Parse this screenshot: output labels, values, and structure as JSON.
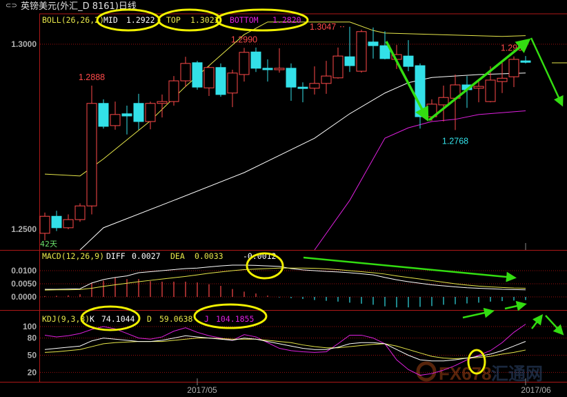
{
  "window": {
    "title": "英镑美元(外汇_D 8161)日线",
    "icon": "window-restore-icon"
  },
  "colors": {
    "up": "#ff4a4a",
    "down": "#33e0e8",
    "boll_mid": "#ffffff",
    "boll_top": "#e8e84a",
    "boll_bottom": "#e020e0",
    "diff": "#ffffff",
    "dea": "#e8e84a",
    "k": "#ffffff",
    "d": "#e8e84a",
    "j": "#e020e0",
    "annotation_ellipse": "#f0f000",
    "annotation_arrow": "#33dd11",
    "frame": "#b01818"
  },
  "boll": {
    "label": "BOLL(26,26,2)",
    "mid_label": "MID",
    "mid": "1.2922",
    "top_label": "TOP",
    "top": "1.3023",
    "bottom_label": "BOTTOM",
    "bottom": "1.2820"
  },
  "macd": {
    "label": "MACD(12,26,9)",
    "diff_label": "DIFF",
    "diff": "0.0027",
    "dea_label": "DEA",
    "dea": "0.0033",
    "macd": "-0.0012"
  },
  "kdj": {
    "label": "KDJ(9,3,3)",
    "k_label": "K",
    "k": "74.1044",
    "d_label": "D",
    "d": "59.0638",
    "j_label": "J",
    "j": "104.1855"
  },
  "days_label": "42天",
  "watermark": "FX678 汇通网",
  "chart_data": [
    {
      "type": "candlestick",
      "title": "",
      "y_ticks": [
        "1.3000",
        "1.2500"
      ],
      "ylim": [
        1.2444,
        1.3078
      ],
      "x_ticks": [
        {
          "label": "2017/05",
          "index": 14
        },
        {
          "label": "2017/06",
          "index": 42
        }
      ],
      "grid": "horizontal dotted at 1.3000",
      "annotations": [
        {
          "text": "1.2888",
          "index": 5,
          "price": 1.2888,
          "color": "#ff4a4a"
        },
        {
          "text": "1.2990",
          "index": 18,
          "price": 1.299,
          "color": "#ff4a4a"
        },
        {
          "text": "1.3047",
          "index": 27,
          "price": 1.3047,
          "color": "#ff4a4a",
          "arrow": "left"
        },
        {
          "text": "1.2768",
          "index": 36,
          "price": 1.2768,
          "color": "#33e0e8"
        },
        {
          "text": "1.2967",
          "index": 41,
          "price": 1.2967,
          "color": "#ff4a4a"
        }
      ],
      "ohlc": [
        [
          1.2489,
          1.2545,
          1.247,
          1.2535
        ],
        [
          1.2535,
          1.255,
          1.2495,
          1.2504
        ],
        [
          1.2504,
          1.254,
          1.25,
          1.2526
        ],
        [
          1.2526,
          1.257,
          1.252,
          1.2563
        ],
        [
          1.2563,
          1.2888,
          1.254,
          1.284
        ],
        [
          1.284,
          1.2851,
          1.2772,
          1.2778
        ],
        [
          1.278,
          1.2845,
          1.2769,
          1.281
        ],
        [
          1.2812,
          1.2834,
          1.2756,
          1.2806
        ],
        [
          1.284,
          1.2866,
          1.2769,
          1.2791
        ],
        [
          1.2791,
          1.2845,
          1.277,
          1.284
        ],
        [
          1.284,
          1.2864,
          1.2802,
          1.2845
        ],
        [
          1.2845,
          1.2914,
          1.2834,
          1.2901
        ],
        [
          1.2901,
          1.2966,
          1.2884,
          1.2948
        ],
        [
          1.295,
          1.2955,
          1.2877,
          1.2884
        ],
        [
          1.2882,
          1.294,
          1.286,
          1.2937
        ],
        [
          1.2937,
          1.2948,
          1.2858,
          1.2864
        ],
        [
          1.2868,
          1.2931,
          1.283,
          1.2922
        ],
        [
          1.2918,
          1.299,
          1.2899,
          1.2978
        ],
        [
          1.2979,
          1.2991,
          1.2925,
          1.2935
        ],
        [
          1.2935,
          1.2959,
          1.2899,
          1.2931
        ],
        [
          1.2931,
          1.2989,
          1.2923,
          1.2935
        ],
        [
          1.2935,
          1.2948,
          1.2847,
          1.2884
        ],
        [
          1.2884,
          1.2897,
          1.2843,
          1.2882
        ],
        [
          1.2881,
          1.294,
          1.2864,
          1.2894
        ],
        [
          1.2894,
          1.2955,
          1.2866,
          1.2914
        ],
        [
          1.2909,
          1.2991,
          1.2907,
          1.2968
        ],
        [
          1.2966,
          1.3047,
          1.2925,
          1.2942
        ],
        [
          1.2927,
          1.3039,
          1.2923,
          1.3034
        ],
        [
          1.3006,
          1.3045,
          1.2961,
          1.2996
        ],
        [
          1.2996,
          1.3035,
          1.2959,
          1.2961
        ],
        [
          1.2959,
          1.2998,
          1.2933,
          1.2972
        ],
        [
          1.2968,
          1.3011,
          1.2927,
          1.294
        ],
        [
          1.2942,
          1.2948,
          1.2772,
          1.2804
        ],
        [
          1.2804,
          1.2851,
          1.2793,
          1.2838
        ],
        [
          1.2836,
          1.2888,
          1.2791,
          1.2856
        ],
        [
          1.2854,
          1.2918,
          1.2768,
          1.289
        ],
        [
          1.289,
          1.2914,
          1.2828,
          1.2877
        ],
        [
          1.2881,
          1.2903,
          1.2843,
          1.2886
        ],
        [
          1.2845,
          1.294,
          1.2843,
          1.2903
        ],
        [
          1.2899,
          1.295,
          1.2868,
          1.2908
        ],
        [
          1.2912,
          1.2967,
          1.2884,
          1.2959
        ],
        [
          1.2955,
          1.2968,
          1.2948,
          1.2951
        ]
      ],
      "boll_top": [
        [
          1,
          1.2649
        ],
        [
          4,
          1.2644
        ],
        [
          6,
          1.269
        ],
        [
          10,
          1.2793
        ],
        [
          13,
          1.2886
        ],
        [
          16,
          1.297
        ],
        [
          18,
          1.3026
        ],
        [
          20,
          1.306
        ],
        [
          27,
          1.306
        ],
        [
          29,
          1.3037
        ],
        [
          30,
          1.303
        ],
        [
          40,
          1.3021
        ],
        [
          42,
          1.3023
        ]
      ],
      "boll_mid": [
        [
          4,
          1.2444
        ],
        [
          6,
          1.2504
        ],
        [
          12,
          1.2578
        ],
        [
          18,
          1.2653
        ],
        [
          24,
          1.2746
        ],
        [
          27,
          1.2812
        ],
        [
          30,
          1.2868
        ],
        [
          32,
          1.2896
        ],
        [
          34,
          1.291
        ],
        [
          38,
          1.2918
        ],
        [
          42,
          1.2922
        ]
      ],
      "boll_bottom": [
        [
          24,
          1.2444
        ],
        [
          27,
          1.2578
        ],
        [
          29,
          1.269
        ],
        [
          30,
          1.2746
        ],
        [
          32,
          1.2774
        ],
        [
          34,
          1.2791
        ],
        [
          36,
          1.2797
        ],
        [
          38,
          1.281
        ],
        [
          42,
          1.282
        ]
      ]
    },
    {
      "type": "bar+line",
      "title": "MACD(12,26,9)",
      "y_ticks": [
        "0.0100",
        "0.0050",
        "0.0000"
      ],
      "ylim": [
        -0.0045,
        0.018
      ],
      "series": [
        {
          "name": "DIFF",
          "values": [
            0.0029,
            0.0029,
            0.003,
            0.0031,
            0.0053,
            0.0066,
            0.0074,
            0.008,
            0.0092,
            0.0096,
            0.01,
            0.0104,
            0.0108,
            0.011,
            0.0114,
            0.0118,
            0.0121,
            0.0121,
            0.012,
            0.0118,
            0.0116,
            0.0108,
            0.0103,
            0.01,
            0.0097,
            0.0095,
            0.0092,
            0.0088,
            0.0084,
            0.0074,
            0.0065,
            0.0058,
            0.0052,
            0.0046,
            0.0042,
            0.0038,
            0.0035,
            0.0033,
            0.0031,
            0.0029,
            0.0028,
            0.0027
          ]
        },
        {
          "name": "DEA",
          "values": [
            0.0026,
            0.0027,
            0.0027,
            0.0028,
            0.0033,
            0.004,
            0.0046,
            0.0052,
            0.0058,
            0.0063,
            0.0068,
            0.0073,
            0.0078,
            0.0084,
            0.009,
            0.0095,
            0.01,
            0.0104,
            0.0106,
            0.0108,
            0.011,
            0.011,
            0.011,
            0.0109,
            0.0107,
            0.0104,
            0.01,
            0.0096,
            0.0092,
            0.0087,
            0.008,
            0.0074,
            0.0068,
            0.0062,
            0.0056,
            0.005,
            0.0045,
            0.0041,
            0.0038,
            0.0036,
            0.0034,
            0.0033
          ]
        },
        {
          "name": "MACD",
          "values": [
            0.0003,
            0.0004,
            0.0006,
            0.001,
            0.0052,
            0.0062,
            0.0074,
            0.0068,
            0.0068,
            0.006,
            0.0058,
            0.0058,
            0.0058,
            0.0055,
            0.0048,
            0.0042,
            0.003,
            0.002,
            0.0013,
            0.0005,
            -0.0002,
            -0.0005,
            -0.0008,
            -0.0012,
            -0.0015,
            -0.0018,
            -0.0022,
            -0.0026,
            -0.003,
            -0.0036,
            -0.004,
            -0.004,
            -0.0038,
            -0.0035,
            -0.003,
            -0.0028,
            -0.0025,
            -0.0022,
            -0.0018,
            -0.0016,
            -0.0014,
            -0.0012
          ]
        }
      ]
    },
    {
      "type": "line",
      "title": "KDJ(9,3,3)",
      "y_ticks": [
        "100",
        "80",
        "50",
        "20"
      ],
      "ylim": [
        3.6,
        129
      ],
      "x_ticks": [
        "2017/05",
        "2017/06"
      ],
      "series": [
        {
          "name": "K",
          "values": [
            60,
            62,
            64,
            66,
            75,
            80,
            78,
            76,
            74,
            74,
            76,
            80,
            84,
            82,
            80,
            78,
            76,
            80,
            78,
            74,
            70,
            66,
            62,
            60,
            60,
            64,
            70,
            72,
            72,
            70,
            60,
            50,
            42,
            40,
            40,
            42,
            45,
            48,
            52,
            58,
            66,
            74.1
          ]
        },
        {
          "name": "D",
          "values": [
            55,
            56,
            58,
            60,
            65,
            70,
            72,
            73,
            74,
            74,
            74,
            76,
            78,
            80,
            80,
            79,
            78,
            78,
            78,
            76,
            74,
            72,
            68,
            65,
            63,
            63,
            65,
            67,
            69,
            70,
            66,
            60,
            54,
            48,
            45,
            44,
            45,
            46,
            48,
            52,
            55,
            59.1
          ]
        },
        {
          "name": "J",
          "values": [
            85,
            82,
            84,
            88,
            95,
            100,
            96,
            88,
            80,
            78,
            82,
            92,
            98,
            90,
            84,
            80,
            76,
            86,
            82,
            72,
            62,
            58,
            56,
            55,
            56,
            70,
            85,
            85,
            80,
            70,
            42,
            25,
            15,
            18,
            24,
            32,
            42,
            50,
            58,
            72,
            90,
            104.2
          ]
        }
      ]
    }
  ]
}
